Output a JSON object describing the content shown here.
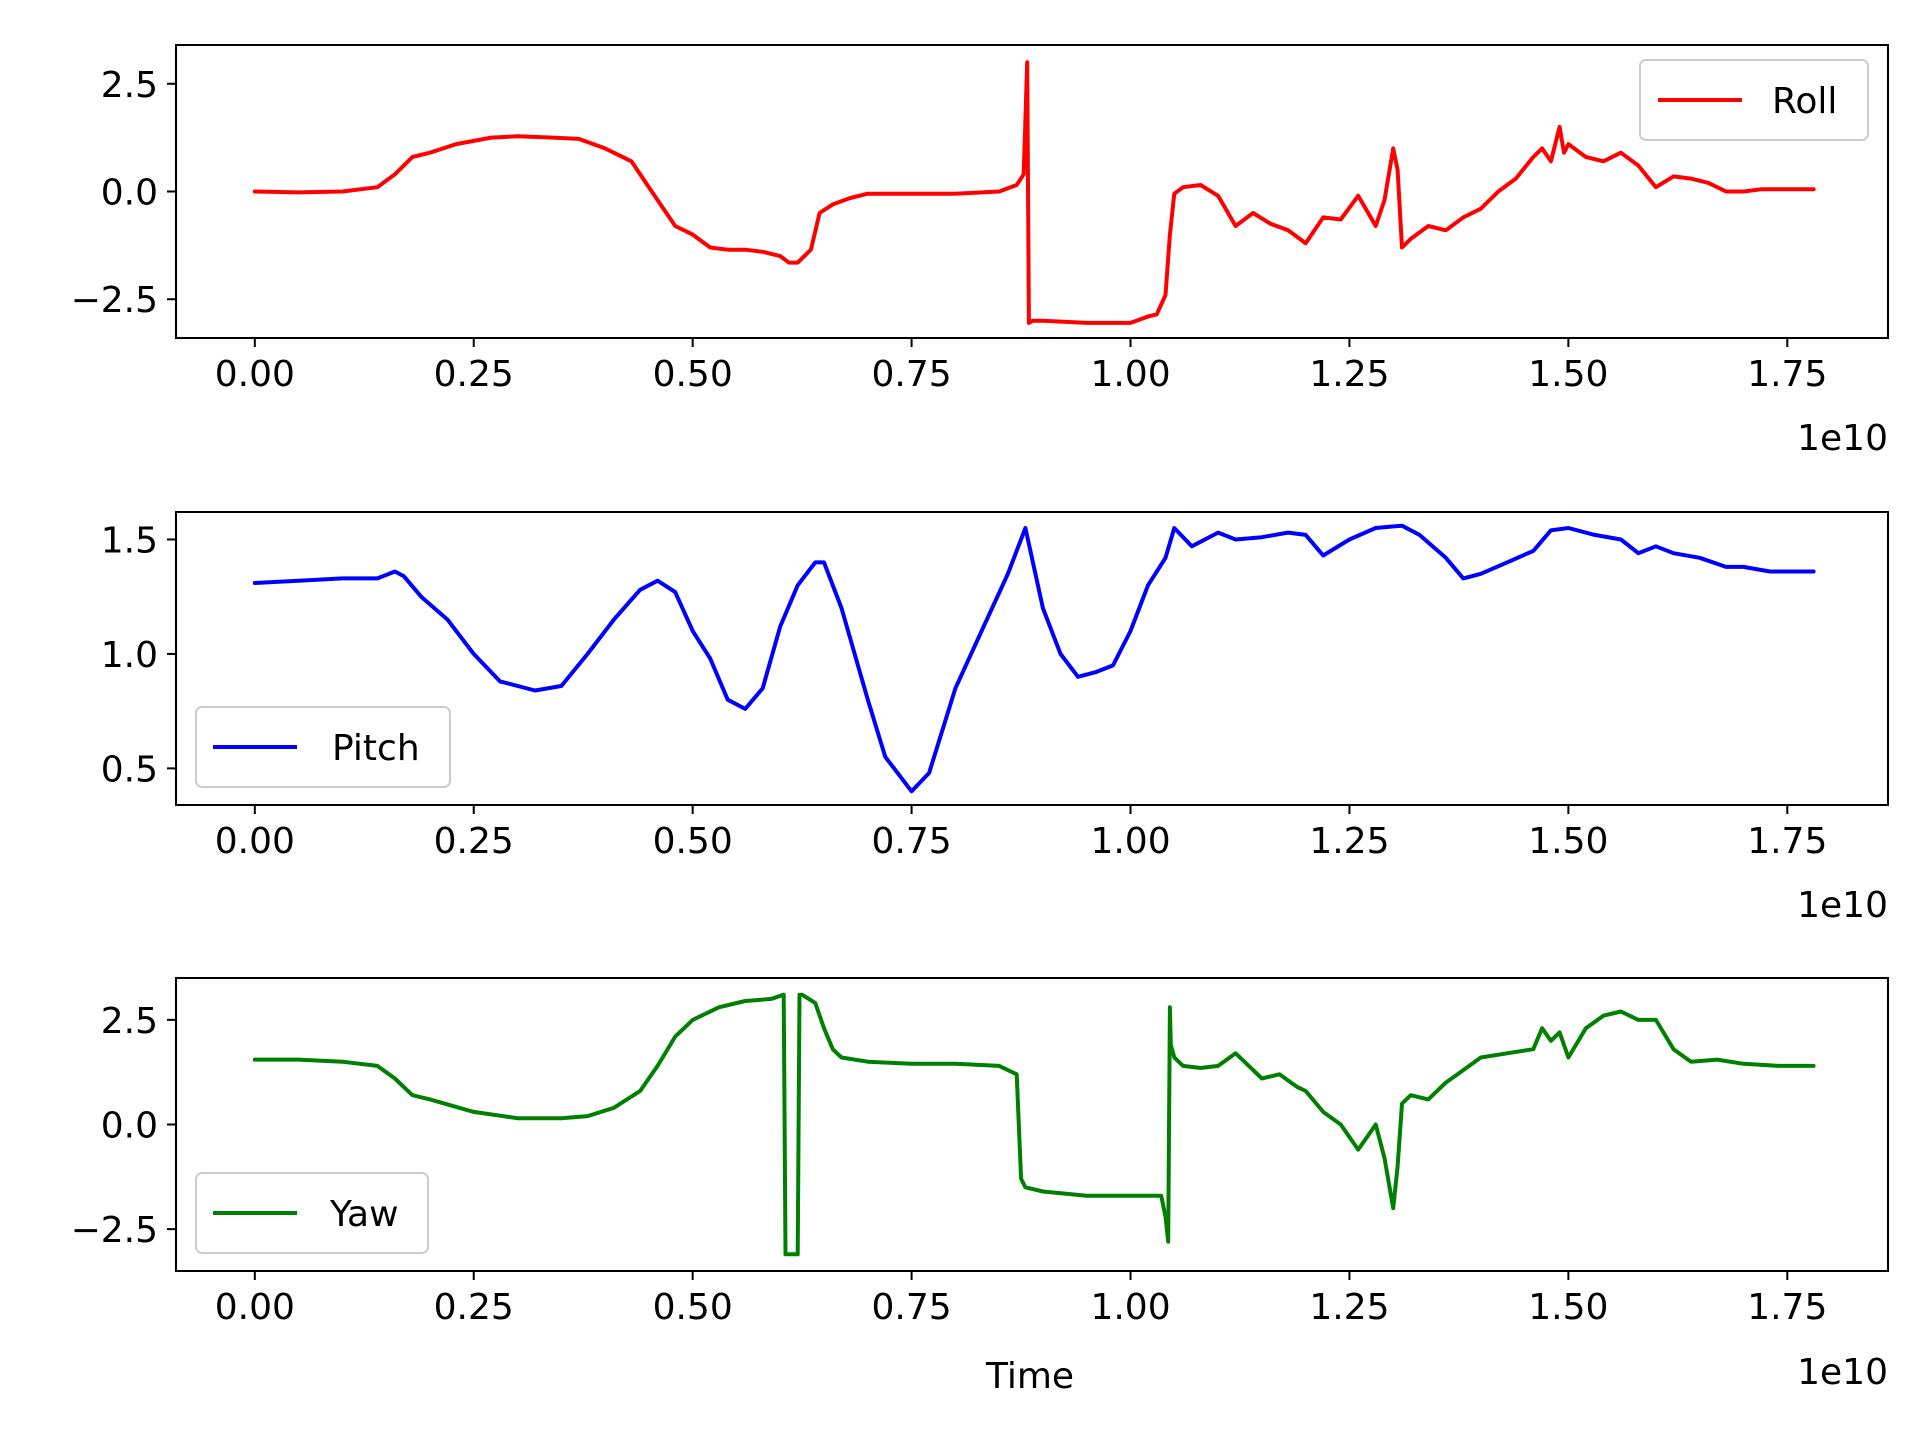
{
  "chart_data": [
    {
      "type": "line",
      "xlim": [
        -0.09,
        1.865
      ],
      "ylim": [
        -3.4,
        3.4
      ],
      "xticks": [
        0.0,
        0.25,
        0.5,
        0.75,
        1.0,
        1.25,
        1.5,
        1.75
      ],
      "xtick_labels": [
        "0.00",
        "0.25",
        "0.50",
        "0.75",
        "1.00",
        "1.25",
        "1.50",
        "1.75"
      ],
      "yticks": [
        2.5,
        0.0,
        -2.5
      ],
      "ytick_labels": [
        "2.5",
        "0.0",
        "−2.5"
      ],
      "x_offset_label": "1e10",
      "xlabel": "",
      "legend_position": "upper right",
      "series": [
        {
          "name": "Roll",
          "color": "#ff0000",
          "x": [
            0.0,
            0.05,
            0.1,
            0.14,
            0.16,
            0.18,
            0.2,
            0.23,
            0.27,
            0.3,
            0.34,
            0.37,
            0.4,
            0.43,
            0.46,
            0.48,
            0.5,
            0.52,
            0.54,
            0.56,
            0.58,
            0.6,
            0.61,
            0.62,
            0.635,
            0.645,
            0.66,
            0.68,
            0.7,
            0.75,
            0.8,
            0.85,
            0.87,
            0.878,
            0.882,
            0.884,
            0.888,
            0.9,
            0.95,
            1.0,
            1.02,
            1.03,
            1.04,
            1.045,
            1.05,
            1.06,
            1.08,
            1.1,
            1.12,
            1.14,
            1.16,
            1.18,
            1.2,
            1.22,
            1.24,
            1.26,
            1.28,
            1.29,
            1.3,
            1.305,
            1.31,
            1.32,
            1.34,
            1.36,
            1.38,
            1.4,
            1.42,
            1.44,
            1.46,
            1.47,
            1.48,
            1.49,
            1.495,
            1.5,
            1.52,
            1.54,
            1.56,
            1.58,
            1.6,
            1.62,
            1.64,
            1.66,
            1.68,
            1.7,
            1.72,
            1.74,
            1.76,
            1.78
          ],
          "y": [
            0.0,
            -0.02,
            0.0,
            0.1,
            0.4,
            0.8,
            0.9,
            1.1,
            1.25,
            1.28,
            1.25,
            1.22,
            1.0,
            0.7,
            -0.2,
            -0.8,
            -1.0,
            -1.3,
            -1.35,
            -1.35,
            -1.4,
            -1.5,
            -1.65,
            -1.65,
            -1.35,
            -0.5,
            -0.3,
            -0.15,
            -0.05,
            -0.05,
            -0.05,
            0.0,
            0.15,
            0.4,
            3.0,
            -3.05,
            -3.0,
            -3.0,
            -3.05,
            -3.05,
            -2.9,
            -2.85,
            -2.4,
            -1.0,
            -0.05,
            0.1,
            0.15,
            -0.1,
            -0.8,
            -0.5,
            -0.75,
            -0.9,
            -1.2,
            -0.6,
            -0.65,
            -0.1,
            -0.8,
            -0.2,
            1.0,
            0.5,
            -1.3,
            -1.1,
            -0.8,
            -0.9,
            -0.6,
            -0.4,
            0.0,
            0.3,
            0.8,
            1.0,
            0.7,
            1.5,
            0.9,
            1.1,
            0.8,
            0.7,
            0.9,
            0.6,
            0.1,
            0.35,
            0.3,
            0.2,
            0.0,
            0.0,
            0.05,
            0.05,
            0.05,
            0.05
          ]
        }
      ]
    },
    {
      "type": "line",
      "xlim": [
        -0.09,
        1.865
      ],
      "ylim": [
        0.34,
        1.62
      ],
      "xticks": [
        0.0,
        0.25,
        0.5,
        0.75,
        1.0,
        1.25,
        1.5,
        1.75
      ],
      "xtick_labels": [
        "0.00",
        "0.25",
        "0.50",
        "0.75",
        "1.00",
        "1.25",
        "1.50",
        "1.75"
      ],
      "yticks": [
        1.5,
        1.0,
        0.5
      ],
      "ytick_labels": [
        "1.5",
        "1.0",
        "0.5"
      ],
      "x_offset_label": "1e10",
      "xlabel": "",
      "legend_position": "lower left",
      "series": [
        {
          "name": "Pitch",
          "color": "#0000ff",
          "x": [
            0.0,
            0.05,
            0.1,
            0.14,
            0.16,
            0.17,
            0.19,
            0.22,
            0.25,
            0.28,
            0.32,
            0.35,
            0.38,
            0.41,
            0.44,
            0.46,
            0.48,
            0.5,
            0.52,
            0.54,
            0.56,
            0.58,
            0.6,
            0.62,
            0.64,
            0.65,
            0.67,
            0.7,
            0.72,
            0.75,
            0.77,
            0.8,
            0.83,
            0.86,
            0.88,
            0.9,
            0.92,
            0.94,
            0.96,
            0.98,
            1.0,
            1.02,
            1.04,
            1.05,
            1.07,
            1.1,
            1.12,
            1.15,
            1.18,
            1.2,
            1.22,
            1.25,
            1.28,
            1.31,
            1.33,
            1.36,
            1.38,
            1.4,
            1.43,
            1.46,
            1.48,
            1.5,
            1.53,
            1.56,
            1.58,
            1.6,
            1.62,
            1.65,
            1.68,
            1.7,
            1.73,
            1.78
          ],
          "y": [
            1.31,
            1.32,
            1.33,
            1.33,
            1.36,
            1.34,
            1.25,
            1.15,
            1.0,
            0.88,
            0.84,
            0.86,
            1.0,
            1.15,
            1.28,
            1.32,
            1.27,
            1.1,
            0.98,
            0.8,
            0.76,
            0.85,
            1.12,
            1.3,
            1.4,
            1.4,
            1.2,
            0.8,
            0.55,
            0.4,
            0.48,
            0.85,
            1.1,
            1.35,
            1.55,
            1.2,
            1.0,
            0.9,
            0.92,
            0.95,
            1.1,
            1.3,
            1.42,
            1.55,
            1.47,
            1.53,
            1.5,
            1.51,
            1.53,
            1.52,
            1.43,
            1.5,
            1.55,
            1.56,
            1.52,
            1.42,
            1.33,
            1.35,
            1.4,
            1.45,
            1.54,
            1.55,
            1.52,
            1.5,
            1.44,
            1.47,
            1.44,
            1.42,
            1.38,
            1.38,
            1.36,
            1.36
          ]
        }
      ]
    },
    {
      "type": "line",
      "xlim": [
        -0.09,
        1.865
      ],
      "ylim": [
        -3.5,
        3.5
      ],
      "xticks": [
        0.0,
        0.25,
        0.5,
        0.75,
        1.0,
        1.25,
        1.5,
        1.75
      ],
      "xtick_labels": [
        "0.00",
        "0.25",
        "0.50",
        "0.75",
        "1.00",
        "1.25",
        "1.50",
        "1.75"
      ],
      "yticks": [
        2.5,
        0.0,
        -2.5
      ],
      "ytick_labels": [
        "2.5",
        "0.0",
        "−2.5"
      ],
      "x_offset_label": "1e10",
      "xlabel": "Time",
      "legend_position": "lower left",
      "series": [
        {
          "name": "Yaw",
          "color": "#008000",
          "x": [
            0.0,
            0.05,
            0.1,
            0.14,
            0.16,
            0.18,
            0.2,
            0.25,
            0.3,
            0.35,
            0.38,
            0.41,
            0.44,
            0.46,
            0.48,
            0.5,
            0.53,
            0.56,
            0.59,
            0.604,
            0.606,
            0.61,
            0.62,
            0.622,
            0.625,
            0.64,
            0.65,
            0.66,
            0.67,
            0.7,
            0.75,
            0.8,
            0.85,
            0.87,
            0.875,
            0.88,
            0.9,
            0.95,
            1.0,
            1.035,
            1.04,
            1.043,
            1.045,
            1.046,
            1.05,
            1.06,
            1.08,
            1.1,
            1.12,
            1.13,
            1.15,
            1.17,
            1.19,
            1.2,
            1.22,
            1.24,
            1.26,
            1.27,
            1.28,
            1.29,
            1.3,
            1.305,
            1.31,
            1.32,
            1.34,
            1.36,
            1.38,
            1.4,
            1.43,
            1.46,
            1.47,
            1.48,
            1.49,
            1.5,
            1.52,
            1.54,
            1.56,
            1.58,
            1.6,
            1.62,
            1.64,
            1.67,
            1.7,
            1.74,
            1.78
          ],
          "y": [
            1.55,
            1.55,
            1.5,
            1.4,
            1.1,
            0.7,
            0.6,
            0.3,
            0.15,
            0.15,
            0.2,
            0.4,
            0.8,
            1.4,
            2.1,
            2.5,
            2.8,
            2.95,
            3.0,
            3.1,
            -3.1,
            -3.1,
            -3.1,
            3.1,
            3.1,
            2.9,
            2.3,
            1.8,
            1.6,
            1.5,
            1.45,
            1.45,
            1.4,
            1.2,
            -1.3,
            -1.5,
            -1.6,
            -1.7,
            -1.7,
            -1.7,
            -2.2,
            -2.8,
            2.8,
            1.9,
            1.6,
            1.4,
            1.35,
            1.4,
            1.7,
            1.5,
            1.1,
            1.2,
            0.9,
            0.8,
            0.3,
            0.0,
            -0.6,
            -0.3,
            0.0,
            -0.8,
            -2.0,
            -1.0,
            0.5,
            0.7,
            0.6,
            1.0,
            1.3,
            1.6,
            1.7,
            1.8,
            2.3,
            2.0,
            2.2,
            1.6,
            2.3,
            2.6,
            2.7,
            2.5,
            2.5,
            1.8,
            1.5,
            1.55,
            1.45,
            1.4,
            1.4
          ]
        }
      ]
    }
  ]
}
